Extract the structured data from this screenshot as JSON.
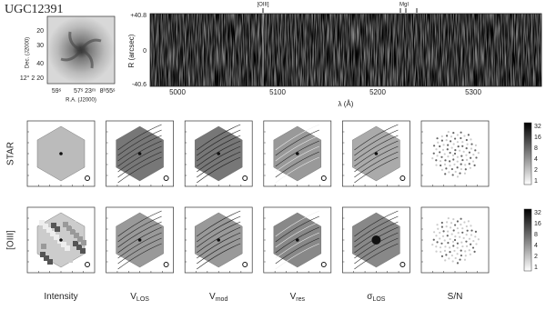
{
  "header": {
    "title": "UGC12391"
  },
  "image_panel": {
    "y_label": "Dec. (J2000)",
    "y_ticks": [
      "20",
      "30",
      "40",
      "12° 2 20"
    ],
    "x_label": "R.A. (J2000)",
    "x_ticks": [
      "59ˢ",
      "57ˢ 23ᵐ",
      "8ʰ55ˢ"
    ]
  },
  "spectrum": {
    "y_label": "R (arcsec)",
    "y_ticks": [
      "+40.8",
      "0",
      "-40.6"
    ],
    "x_label": "λ (Å)",
    "x_ticks": [
      "5000",
      "5100",
      "5200",
      "5300"
    ],
    "lines": [
      "[OIII]",
      "MgI"
    ]
  },
  "rows": [
    "STAR",
    "[OIII]"
  ],
  "columns": [
    {
      "main": "Intensity"
    },
    {
      "main": "V",
      "sub": "LOS"
    },
    {
      "main": "V",
      "sub": "mod"
    },
    {
      "main": "V",
      "sub": "res"
    },
    {
      "main": "σ",
      "sub": "LOS"
    },
    {
      "main": "S/N"
    }
  ],
  "colorbar": {
    "ticks": [
      "32",
      "16",
      "8",
      "4",
      "2",
      "1"
    ]
  }
}
